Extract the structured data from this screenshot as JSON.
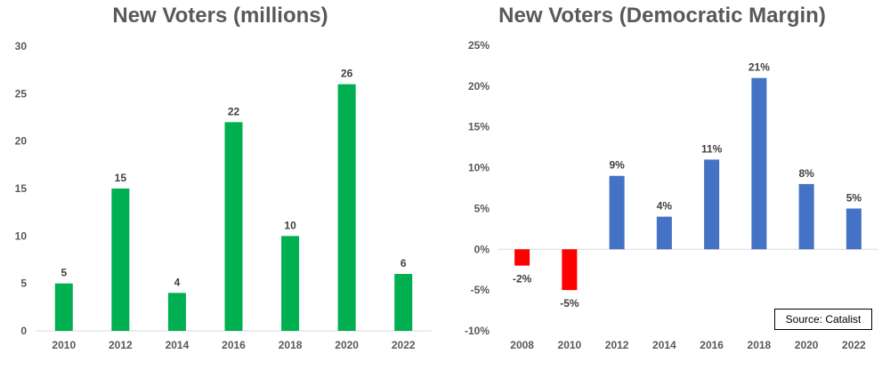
{
  "source_note": "Source: Catalist",
  "colors": {
    "green": "#00B050",
    "blue": "#4472C4",
    "red": "#FF0000",
    "axis": "#D9D9D9",
    "text": "#595959"
  },
  "chart_data": [
    {
      "type": "bar",
      "title": "New Voters (millions)",
      "categories": [
        "2010",
        "2012",
        "2014",
        "2016",
        "2018",
        "2020",
        "2022"
      ],
      "values": [
        5,
        15,
        4,
        22,
        10,
        26,
        6
      ],
      "data_labels": [
        "5",
        "15",
        "4",
        "22",
        "10",
        "26",
        "6"
      ],
      "yticks": [
        "0",
        "5",
        "10",
        "15",
        "20",
        "25",
        "30"
      ],
      "ylim": [
        0,
        30
      ],
      "grid": false
    },
    {
      "type": "bar",
      "title": "New Voters (Democratic Margin)",
      "categories": [
        "2008",
        "2010",
        "2012",
        "2014",
        "2016",
        "2018",
        "2020",
        "2022"
      ],
      "values": [
        -2,
        -5,
        9,
        4,
        11,
        21,
        8,
        5
      ],
      "data_labels": [
        "-2%",
        "-5%",
        "9%",
        "4%",
        "11%",
        "21%",
        "8%",
        "5%"
      ],
      "yticks": [
        "-10%",
        "-5%",
        "0%",
        "5%",
        "10%",
        "15%",
        "20%",
        "25%"
      ],
      "ylim": [
        -10,
        25
      ],
      "grid": false,
      "negative_color": "red",
      "positive_color": "blue"
    }
  ]
}
